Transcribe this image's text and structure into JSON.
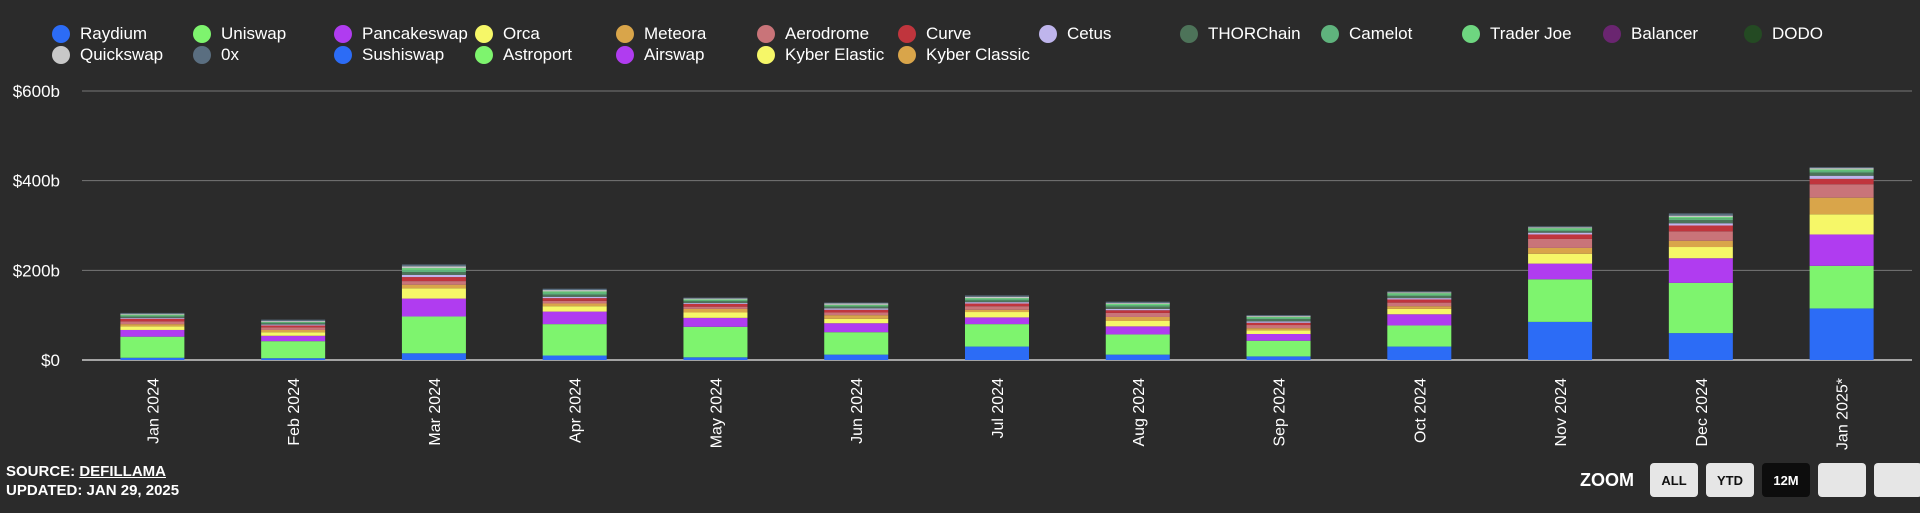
{
  "legend": [
    {
      "name": "Raydium",
      "color": "#2c6cf6"
    },
    {
      "name": "Uniswap",
      "color": "#7ef46e"
    },
    {
      "name": "Pancakeswap",
      "color": "#b03cf0"
    },
    {
      "name": "Orca",
      "color": "#f6f768"
    },
    {
      "name": "Meteora",
      "color": "#d9a54a"
    },
    {
      "name": "Aerodrome",
      "color": "#c97479"
    },
    {
      "name": "Curve",
      "color": "#c0353d"
    },
    {
      "name": "Cetus",
      "color": "#bfb5ec"
    },
    {
      "name": "THORChain",
      "color": "#4d7359"
    },
    {
      "name": "Camelot",
      "color": "#5fb37d"
    },
    {
      "name": "Trader Joe",
      "color": "#6ed680"
    },
    {
      "name": "Balancer",
      "color": "#6a2570"
    },
    {
      "name": "DODO",
      "color": "#244a23"
    },
    {
      "name": "Quickswap",
      "color": "#c8c8c8"
    },
    {
      "name": "0x",
      "color": "#5a6e80"
    },
    {
      "name": "Sushiswap",
      "color": "#2c6cf6"
    },
    {
      "name": "Astroport",
      "color": "#7ef46e"
    },
    {
      "name": "Airswap",
      "color": "#b03cf0"
    },
    {
      "name": "Kyber Elastic",
      "color": "#f6f768"
    },
    {
      "name": "Kyber Classic",
      "color": "#d9a54a"
    }
  ],
  "chart_data": {
    "type": "bar",
    "stacked": true,
    "categories": [
      "Jan 2024",
      "Feb 2024",
      "Mar 2024",
      "Apr 2024",
      "May 2024",
      "Jun 2024",
      "Jul 2024",
      "Aug 2024",
      "Sep 2024",
      "Oct 2024",
      "Nov 2024",
      "Dec 2024",
      "Jan 2025*"
    ],
    "ylim": [
      0,
      600
    ],
    "yticks": [
      "$0",
      "$200b",
      "$400b",
      "$600b"
    ],
    "yticks_values": [
      0,
      200,
      400,
      600
    ],
    "unit": "$b",
    "series": [
      {
        "name": "Raydium",
        "color": "#2c6cf6",
        "values": [
          5,
          4,
          15,
          10,
          6,
          12,
          30,
          12,
          8,
          30,
          85,
          60,
          115
        ]
      },
      {
        "name": "Uniswap",
        "color": "#7ef46e",
        "values": [
          47,
          38,
          82,
          70,
          68,
          50,
          50,
          45,
          35,
          47,
          95,
          112,
          95
        ]
      },
      {
        "name": "Pancakeswap",
        "color": "#b03cf0",
        "values": [
          15,
          12,
          40,
          28,
          20,
          20,
          15,
          18,
          15,
          25,
          35,
          55,
          70
        ]
      },
      {
        "name": "Orca",
        "color": "#f6f768",
        "values": [
          8,
          8,
          23,
          12,
          12,
          10,
          12,
          12,
          8,
          12,
          22,
          25,
          45
        ]
      },
      {
        "name": "Meteora",
        "color": "#d9a54a",
        "values": [
          5,
          5,
          8,
          6,
          8,
          8,
          5,
          9,
          5,
          6,
          13,
          14,
          37
        ]
      },
      {
        "name": "Aerodrome",
        "color": "#c97479",
        "values": [
          6,
          6,
          8,
          6,
          5,
          6,
          8,
          9,
          7,
          8,
          20,
          21,
          30
        ]
      },
      {
        "name": "Curve",
        "color": "#c0353d",
        "values": [
          6,
          4,
          9,
          6,
          6,
          6,
          6,
          6,
          5,
          7,
          10,
          13,
          12
        ]
      },
      {
        "name": "Cetus",
        "color": "#bfb5ec",
        "values": [
          2,
          2,
          5,
          3,
          2,
          3,
          3,
          3,
          3,
          3,
          4,
          5,
          7
        ]
      },
      {
        "name": "THORChain",
        "color": "#4d7359",
        "values": [
          3,
          3,
          6,
          5,
          4,
          4,
          4,
          5,
          5,
          5,
          4,
          7,
          7
        ]
      },
      {
        "name": "Camelot",
        "color": "#5fb37d",
        "values": [
          2,
          2,
          5,
          4,
          2,
          2,
          3,
          3,
          3,
          3,
          3,
          4,
          4
        ]
      },
      {
        "name": "Trader Joe",
        "color": "#6ed680",
        "values": [
          2,
          1,
          4,
          3,
          2,
          2,
          2,
          3,
          2,
          3,
          3,
          3,
          3
        ]
      },
      {
        "name": "Quickswap",
        "color": "#c8c8c8",
        "values": [
          2,
          2,
          4,
          3,
          2,
          3,
          3,
          2,
          2,
          2,
          2,
          3,
          3
        ]
      },
      {
        "name": "0x",
        "color": "#5a6e80",
        "values": [
          2,
          3,
          4,
          3,
          2,
          2,
          3,
          3,
          2,
          2,
          2,
          5,
          2
        ]
      }
    ]
  },
  "footer": {
    "source_label": "SOURCE: ",
    "source_link": "DEFILLAMA",
    "updated": "UPDATED: JAN 29, 2025"
  },
  "zoom": {
    "label": "ZOOM",
    "buttons": [
      "ALL",
      "YTD",
      "12M",
      "",
      ""
    ],
    "active": "12M"
  }
}
